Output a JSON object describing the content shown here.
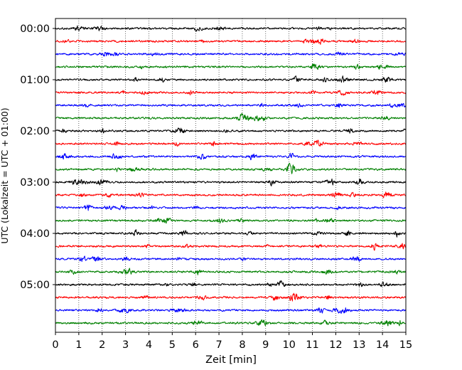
{
  "chart_data": {
    "type": "line",
    "title": "",
    "xlabel": "Zeit  [min]",
    "ylabel": "UTC (Lokalzeit = UTC + 01:00)",
    "xlim": [
      0,
      15
    ],
    "x_ticks": [
      "0",
      "1",
      "2",
      "3",
      "4",
      "5",
      "6",
      "7",
      "8",
      "9",
      "10",
      "11",
      "12",
      "13",
      "14",
      "15"
    ],
    "y_ticks": [
      "00:00",
      "01:00",
      "02:00",
      "03:00",
      "04:00",
      "05:00"
    ],
    "grid": "vertical dotted lines at each minute",
    "legend": "none",
    "trace_interval_minutes": 15,
    "trace_colors": [
      "#000000",
      "#ff0000",
      "#0000ff",
      "#008000"
    ],
    "traces": [
      {
        "start": "00:00",
        "color": "#000000"
      },
      {
        "start": "00:15",
        "color": "#ff0000"
      },
      {
        "start": "00:30",
        "color": "#0000ff"
      },
      {
        "start": "00:45",
        "color": "#008000"
      },
      {
        "start": "01:00",
        "color": "#000000"
      },
      {
        "start": "01:15",
        "color": "#ff0000"
      },
      {
        "start": "01:30",
        "color": "#0000ff"
      },
      {
        "start": "01:45",
        "color": "#008000"
      },
      {
        "start": "02:00",
        "color": "#000000"
      },
      {
        "start": "02:15",
        "color": "#ff0000"
      },
      {
        "start": "02:30",
        "color": "#0000ff"
      },
      {
        "start": "02:45",
        "color": "#008000"
      },
      {
        "start": "03:00",
        "color": "#000000"
      },
      {
        "start": "03:15",
        "color": "#ff0000"
      },
      {
        "start": "03:30",
        "color": "#0000ff"
      },
      {
        "start": "03:45",
        "color": "#008000"
      },
      {
        "start": "04:00",
        "color": "#000000"
      },
      {
        "start": "04:15",
        "color": "#ff0000"
      },
      {
        "start": "04:30",
        "color": "#0000ff"
      },
      {
        "start": "04:45",
        "color": "#008000"
      },
      {
        "start": "05:00",
        "color": "#000000"
      },
      {
        "start": "05:15",
        "color": "#ff0000"
      },
      {
        "start": "05:30",
        "color": "#0000ff"
      },
      {
        "start": "05:45",
        "color": "#008000"
      }
    ]
  }
}
